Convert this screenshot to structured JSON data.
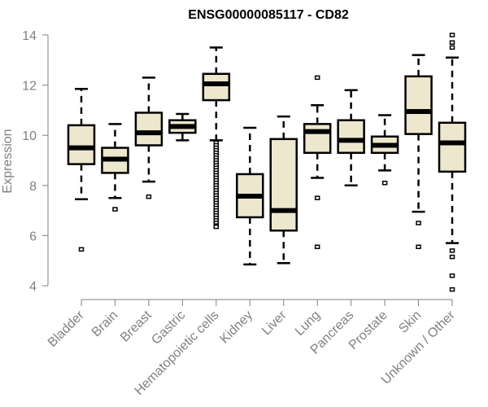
{
  "chart_data": {
    "type": "box",
    "title": "ENSG00000085117 - CD82",
    "xlabel": "",
    "ylabel": "Expression",
    "ylim": [
      4,
      14
    ],
    "yticks": [
      4,
      6,
      8,
      10,
      12,
      14
    ],
    "grid": false,
    "colors": {
      "box_fill": "#EDE7CD",
      "stroke": "#000000",
      "axis": "#808080"
    },
    "categories": [
      "Bladder",
      "Brain",
      "Breast",
      "Gastric",
      "Hematopoietic cells",
      "Kidney",
      "Liver",
      "Lung",
      "Pancreas",
      "Prostate",
      "Skin",
      "Unknown / Other"
    ],
    "boxes": [
      {
        "name": "Bladder",
        "whisker_low": 7.45,
        "q1": 8.85,
        "median": 9.5,
        "q3": 10.4,
        "whisker_high": 11.85,
        "outliers": [
          5.45
        ]
      },
      {
        "name": "Brain",
        "whisker_low": 7.5,
        "q1": 8.5,
        "median": 9.05,
        "q3": 9.5,
        "whisker_high": 10.45,
        "outliers": [
          7.05
        ]
      },
      {
        "name": "Breast",
        "whisker_low": 8.15,
        "q1": 9.6,
        "median": 10.1,
        "q3": 10.9,
        "whisker_high": 12.3,
        "outliers": [
          7.55
        ]
      },
      {
        "name": "Gastric",
        "whisker_low": 9.8,
        "q1": 10.1,
        "median": 10.35,
        "q3": 10.6,
        "whisker_high": 10.85,
        "outliers": []
      },
      {
        "name": "Hematopoietic cells",
        "whisker_low": 9.8,
        "q1": 11.4,
        "median": 12.05,
        "q3": 12.45,
        "whisker_high": 13.5,
        "outliers": [
          9.7,
          9.6,
          9.5,
          9.4,
          9.3,
          9.2,
          9.1,
          9.0,
          8.9,
          8.8,
          8.7,
          8.6,
          8.5,
          8.4,
          8.3,
          8.2,
          8.1,
          8.0,
          7.9,
          7.8,
          7.7,
          7.6,
          7.5,
          7.4,
          7.3,
          7.2,
          7.1,
          7.0,
          6.9,
          6.8,
          6.7,
          6.6,
          6.5,
          6.4,
          6.35
        ]
      },
      {
        "name": "Kidney",
        "whisker_low": 4.85,
        "q1": 6.73,
        "median": 7.57,
        "q3": 8.45,
        "whisker_high": 10.3,
        "outliers": []
      },
      {
        "name": "Liver",
        "whisker_low": 4.9,
        "q1": 6.2,
        "median": 7.0,
        "q3": 9.85,
        "whisker_high": 10.75,
        "outliers": []
      },
      {
        "name": "Lung",
        "whisker_low": 8.3,
        "q1": 9.3,
        "median": 10.15,
        "q3": 10.45,
        "whisker_high": 11.2,
        "outliers": [
          12.3,
          7.5,
          5.55
        ]
      },
      {
        "name": "Pancreas",
        "whisker_low": 8.0,
        "q1": 9.3,
        "median": 9.8,
        "q3": 10.6,
        "whisker_high": 11.8,
        "outliers": []
      },
      {
        "name": "Prostate",
        "whisker_low": 8.6,
        "q1": 9.3,
        "median": 9.6,
        "q3": 9.95,
        "whisker_high": 10.8,
        "outliers": [
          8.1
        ]
      },
      {
        "name": "Skin",
        "whisker_low": 6.95,
        "q1": 10.05,
        "median": 10.95,
        "q3": 12.35,
        "whisker_high": 13.2,
        "outliers": [
          6.5,
          5.55
        ]
      },
      {
        "name": "Unknown / Other",
        "whisker_low": 5.7,
        "q1": 8.55,
        "median": 9.7,
        "q3": 10.5,
        "whisker_high": 13.1,
        "outliers": [
          14.0,
          13.7,
          13.5,
          5.4,
          5.15,
          4.4,
          3.85
        ]
      }
    ]
  }
}
